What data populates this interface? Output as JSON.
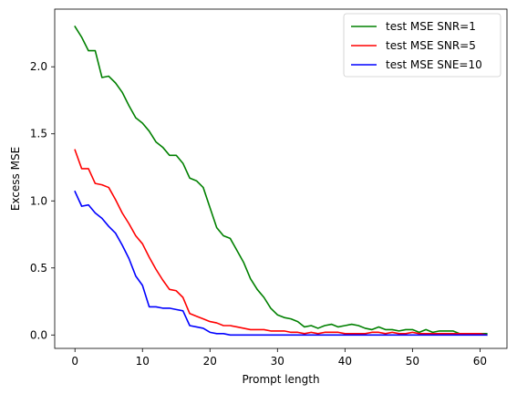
{
  "chart_data": {
    "type": "line",
    "title": "",
    "xlabel": "Prompt length",
    "ylabel": "Excess MSE",
    "xlim": [
      -3,
      64
    ],
    "ylim": [
      -0.1,
      2.43
    ],
    "xticks": [
      0,
      10,
      20,
      30,
      40,
      50,
      60
    ],
    "yticks": [
      0.0,
      0.5,
      1.0,
      1.5,
      2.0
    ],
    "xtick_labels": [
      "0",
      "10",
      "20",
      "30",
      "40",
      "50",
      "60"
    ],
    "ytick_labels": [
      "0.0",
      "0.5",
      "1.0",
      "1.5",
      "2.0"
    ],
    "grid": false,
    "legend_position": "top-right",
    "series": [
      {
        "name": "test MSE SNR=1",
        "color": "#008000",
        "x": [
          0,
          1,
          2,
          3,
          4,
          5,
          6,
          7,
          8,
          9,
          10,
          11,
          12,
          13,
          14,
          15,
          16,
          17,
          18,
          19,
          20,
          21,
          22,
          23,
          24,
          25,
          26,
          27,
          28,
          29,
          30,
          31,
          32,
          33,
          34,
          35,
          36,
          37,
          38,
          39,
          40,
          41,
          42,
          43,
          44,
          45,
          46,
          47,
          48,
          49,
          50,
          51,
          52,
          53,
          54,
          55,
          56,
          57,
          58,
          59,
          60,
          61
        ],
        "y": [
          2.3,
          2.22,
          2.12,
          2.12,
          1.92,
          1.93,
          1.88,
          1.81,
          1.71,
          1.62,
          1.58,
          1.52,
          1.44,
          1.4,
          1.34,
          1.34,
          1.28,
          1.17,
          1.15,
          1.1,
          0.95,
          0.8,
          0.74,
          0.72,
          0.63,
          0.54,
          0.42,
          0.34,
          0.28,
          0.2,
          0.15,
          0.13,
          0.12,
          0.1,
          0.06,
          0.07,
          0.05,
          0.07,
          0.08,
          0.06,
          0.07,
          0.08,
          0.07,
          0.05,
          0.04,
          0.06,
          0.04,
          0.04,
          0.03,
          0.04,
          0.04,
          0.02,
          0.04,
          0.02,
          0.03,
          0.03,
          0.03,
          0.01,
          0.01,
          0.01,
          0.01,
          0.01
        ]
      },
      {
        "name": "test MSE SNR=5",
        "color": "#ff0000",
        "x": [
          0,
          1,
          2,
          3,
          4,
          5,
          6,
          7,
          8,
          9,
          10,
          11,
          12,
          13,
          14,
          15,
          16,
          17,
          18,
          19,
          20,
          21,
          22,
          23,
          24,
          25,
          26,
          27,
          28,
          29,
          30,
          31,
          32,
          33,
          34,
          35,
          36,
          37,
          38,
          39,
          40,
          41,
          42,
          43,
          44,
          45,
          46,
          47,
          48,
          49,
          50,
          51,
          52,
          53,
          54,
          55,
          56,
          57,
          58,
          59,
          60,
          61
        ],
        "y": [
          1.38,
          1.24,
          1.24,
          1.13,
          1.12,
          1.1,
          1.01,
          0.91,
          0.83,
          0.74,
          0.68,
          0.58,
          0.49,
          0.41,
          0.34,
          0.33,
          0.28,
          0.16,
          0.14,
          0.12,
          0.1,
          0.09,
          0.07,
          0.07,
          0.06,
          0.05,
          0.04,
          0.04,
          0.04,
          0.03,
          0.03,
          0.03,
          0.02,
          0.02,
          0.01,
          0.02,
          0.01,
          0.02,
          0.02,
          0.02,
          0.01,
          0.01,
          0.01,
          0.01,
          0.02,
          0.02,
          0.01,
          0.02,
          0.01,
          0.01,
          0.02,
          0.01,
          0.01,
          0.01,
          0.01,
          0.01,
          0.01,
          0.01,
          0.01,
          0.01,
          0.01,
          0.0
        ]
      },
      {
        "name": "test MSE SNE=10",
        "color": "#0000ff",
        "x": [
          0,
          1,
          2,
          3,
          4,
          5,
          6,
          7,
          8,
          9,
          10,
          11,
          12,
          13,
          14,
          15,
          16,
          17,
          18,
          19,
          20,
          21,
          22,
          23,
          24,
          25,
          26,
          27,
          28,
          29,
          30,
          31,
          32,
          33,
          34,
          35,
          36,
          37,
          38,
          39,
          40,
          41,
          42,
          43,
          44,
          45,
          46,
          47,
          48,
          49,
          50,
          51,
          52,
          53,
          54,
          55,
          56,
          57,
          58,
          59,
          60,
          61
        ],
        "y": [
          1.07,
          0.96,
          0.97,
          0.91,
          0.87,
          0.81,
          0.76,
          0.67,
          0.57,
          0.44,
          0.37,
          0.21,
          0.21,
          0.2,
          0.2,
          0.19,
          0.18,
          0.07,
          0.06,
          0.05,
          0.02,
          0.01,
          0.01,
          0.0,
          0.0,
          0.0,
          0.0,
          0.0,
          0.0,
          0.0,
          0.0,
          0.0,
          0.0,
          0.0,
          0.0,
          0.0,
          0.0,
          0.0,
          0.0,
          0.0,
          0.0,
          0.0,
          0.0,
          0.0,
          0.0,
          0.0,
          0.0,
          0.0,
          0.0,
          0.0,
          0.0,
          0.0,
          0.0,
          0.0,
          0.0,
          0.0,
          0.0,
          0.0,
          0.0,
          0.0,
          0.0,
          0.0
        ]
      }
    ]
  }
}
